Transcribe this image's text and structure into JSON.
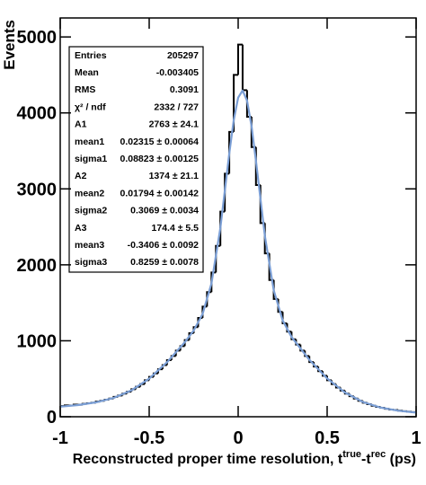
{
  "chart_data": {
    "type": "histogram",
    "y_label": "Events",
    "x_label": [
      "Reconstructed proper time resolution, t",
      "true",
      "-t",
      "rec",
      " (ps)"
    ],
    "xlim": [
      -1,
      1
    ],
    "ylim": [
      0,
      5250
    ],
    "xticks": [
      -1,
      -0.5,
      0,
      0.5,
      1
    ],
    "yticks": [
      0,
      1000,
      2000,
      3000,
      4000,
      5000
    ],
    "color": "#000000",
    "bins": [
      -1,
      -0.975,
      -0.95,
      -0.925,
      -0.9,
      -0.875,
      -0.85,
      -0.825,
      -0.8,
      -0.775,
      -0.75,
      -0.725,
      -0.7,
      -0.675,
      -0.65,
      -0.625,
      -0.6,
      -0.575,
      -0.55,
      -0.525,
      -0.5,
      -0.475,
      -0.45,
      -0.425,
      -0.4,
      -0.375,
      -0.35,
      -0.325,
      -0.3,
      -0.275,
      -0.25,
      -0.225,
      -0.2,
      -0.175,
      -0.15,
      -0.125,
      -0.1,
      -0.075,
      -0.05,
      -0.025,
      0,
      0.025,
      0.05,
      0.075,
      0.1,
      0.125,
      0.15,
      0.175,
      0.2,
      0.225,
      0.25,
      0.275,
      0.3,
      0.325,
      0.35,
      0.375,
      0.4,
      0.425,
      0.45,
      0.475,
      0.5,
      0.525,
      0.55,
      0.575,
      0.6,
      0.625,
      0.65,
      0.675,
      0.7,
      0.725,
      0.75,
      0.775,
      0.8,
      0.825,
      0.85,
      0.875,
      0.9,
      0.925,
      0.95,
      0.975,
      1
    ],
    "values": [
      140,
      150,
      148,
      160,
      158,
      170,
      178,
      185,
      200,
      210,
      225,
      240,
      262,
      280,
      305,
      330,
      362,
      395,
      430,
      480,
      525,
      570,
      625,
      680,
      745,
      800,
      870,
      930,
      1010,
      1100,
      1180,
      1300,
      1450,
      1640,
      1900,
      2250,
      2700,
      3200,
      3750,
      4500,
      4900,
      4300,
      3950,
      3550,
      3050,
      2550,
      2150,
      1800,
      1550,
      1380,
      1230,
      1120,
      1020,
      950,
      870,
      800,
      720,
      660,
      600,
      540,
      480,
      430,
      385,
      345,
      305,
      270,
      240,
      210,
      185,
      165,
      145,
      130,
      118,
      105,
      95,
      88,
      80,
      72,
      66,
      60
    ],
    "fit": {
      "color": "#7b9fd6",
      "x": [
        -1,
        -0.9,
        -0.8,
        -0.7,
        -0.6,
        -0.5,
        -0.4,
        -0.3,
        -0.25,
        -0.2,
        -0.15,
        -0.1,
        -0.05,
        -0.025,
        0,
        0.025,
        0.05,
        0.075,
        0.1,
        0.15,
        0.2,
        0.25,
        0.3,
        0.4,
        0.5,
        0.6,
        0.7,
        0.8,
        0.9,
        1
      ],
      "y": [
        132,
        154,
        189,
        248,
        347,
        502,
        717,
        981,
        1135,
        1352,
        1755,
        2486,
        3464,
        3904,
        4201,
        4295,
        4161,
        3829,
        3368,
        2382,
        1664,
        1269,
        1050,
        750,
        504,
        319,
        195,
        121,
        79,
        55
      ]
    },
    "stats": [
      [
        "Entries",
        "205297"
      ],
      [
        "Mean",
        "-0.003405"
      ],
      [
        "RMS",
        "0.3091"
      ],
      [
        "χ² / ndf",
        "2332 / 727"
      ],
      [
        "A1",
        "2763 ± 24.1"
      ],
      [
        "mean1",
        "0.02315 ± 0.00064"
      ],
      [
        "sigma1",
        "0.08823 ± 0.00125"
      ],
      [
        "A2",
        "1374 ± 21.1"
      ],
      [
        "mean2",
        "0.01794 ± 0.00142"
      ],
      [
        "sigma2",
        "0.3069 ± 0.0034"
      ],
      [
        "A3",
        "174.4 ± 5.5"
      ],
      [
        "mean3",
        "-0.3406 ± 0.0092"
      ],
      [
        "sigma3",
        "0.8259 ± 0.0078"
      ]
    ]
  }
}
